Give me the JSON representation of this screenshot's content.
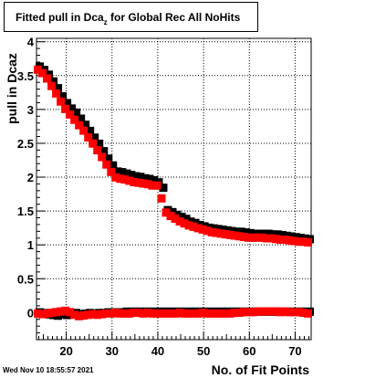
{
  "title": {
    "main": "Fitted pull in Dca",
    "sub": "z",
    "rest": " for Global Rec All NoHits"
  },
  "timestamp": "Wed Nov 10 18:55:57 2021",
  "colors": {
    "series_black": "#000000",
    "series_red": "#ff0000",
    "grid": "#000000"
  },
  "chart_data": {
    "type": "scatter",
    "title": "Fitted pull in Dcaz for Global Rec All NoHits",
    "xlabel": "No. of Fit Points",
    "ylabel": "pull in Dcaz",
    "xlim": [
      13.5,
      73.5
    ],
    "ylim": [
      -0.4,
      4.05
    ],
    "grid": true,
    "x_ticks": [
      20,
      30,
      40,
      50,
      60,
      70
    ],
    "y_ticks": [
      0,
      0.5,
      1,
      1.5,
      2,
      2.5,
      3,
      3.5,
      4
    ],
    "x_tick_labels": [
      "20",
      "30",
      "40",
      "50",
      "60",
      "70"
    ],
    "y_tick_labels": [
      "0",
      "0.5",
      "1",
      "1.5",
      "2",
      "2.5",
      "3",
      "3.5",
      "4"
    ],
    "x": [
      14,
      15,
      16,
      17,
      18,
      19,
      20,
      21,
      22,
      23,
      24,
      25,
      26,
      27,
      28,
      29,
      30,
      31,
      32,
      33,
      34,
      35,
      36,
      37,
      38,
      39,
      40,
      41,
      42,
      43,
      44,
      45,
      46,
      47,
      48,
      49,
      50,
      51,
      52,
      53,
      54,
      55,
      56,
      57,
      58,
      59,
      60,
      61,
      62,
      63,
      64,
      65,
      66,
      67,
      68,
      69,
      70,
      71,
      72,
      73
    ],
    "series": [
      {
        "color": "black",
        "values": [
          3.62,
          3.57,
          3.5,
          3.4,
          3.3,
          3.18,
          3.08,
          3.0,
          2.94,
          2.85,
          2.76,
          2.67,
          2.57,
          2.48,
          2.37,
          2.26,
          2.16,
          2.07,
          2.06,
          2.04,
          2.02,
          2.0,
          1.99,
          1.97,
          1.96,
          1.94,
          1.91,
          1.83,
          1.5,
          1.47,
          1.43,
          1.4,
          1.37,
          1.33,
          1.31,
          1.28,
          1.26,
          1.24,
          1.23,
          1.22,
          1.21,
          1.2,
          1.19,
          1.18,
          1.18,
          1.17,
          1.16,
          1.15,
          1.15,
          1.15,
          1.15,
          1.14,
          1.14,
          1.13,
          1.12,
          1.11,
          1.1,
          1.09,
          1.08,
          1.07
        ]
      },
      {
        "color": "red",
        "values": [
          3.6,
          3.55,
          3.47,
          3.36,
          3.25,
          3.13,
          3.02,
          2.94,
          2.86,
          2.78,
          2.7,
          2.6,
          2.51,
          2.41,
          2.31,
          2.2,
          2.09,
          2.01,
          1.99,
          1.98,
          1.96,
          1.94,
          1.93,
          1.92,
          1.91,
          1.89,
          1.89,
          1.7,
          1.49,
          1.44,
          1.4,
          1.36,
          1.33,
          1.3,
          1.28,
          1.26,
          1.24,
          1.22,
          1.2,
          1.19,
          1.18,
          1.17,
          1.16,
          1.15,
          1.14,
          1.13,
          1.12,
          1.12,
          1.12,
          1.12,
          1.11,
          1.11,
          1.1,
          1.09,
          1.09,
          1.08,
          1.07,
          1.06,
          1.06,
          1.05
        ]
      },
      {
        "color": "black",
        "values": [
          -0.01,
          -0.02,
          -0.04,
          -0.05,
          -0.06,
          -0.04,
          -0.05,
          -0.03,
          -0.02,
          -0.04,
          -0.03,
          -0.02,
          -0.03,
          -0.02,
          -0.02,
          -0.01,
          -0.01,
          -0.01,
          -0.01,
          0.0,
          0.0,
          0.0,
          0.0,
          0.0,
          0.0,
          0.0,
          0.0,
          0.0,
          0.0,
          0.0,
          0.0,
          0.0,
          0.0,
          0.0,
          0.0,
          0.0,
          0.0,
          0.0,
          0.0,
          0.0,
          0.0,
          0.0,
          0.0,
          0.0,
          0.0,
          0.0,
          0.0,
          0.0,
          0.0,
          0.0,
          0.0,
          0.0,
          0.0,
          0.0,
          0.0,
          0.0,
          0.0,
          0.0,
          0.0,
          0.0
        ]
      },
      {
        "color": "red",
        "values": [
          0.0,
          -0.01,
          0.0,
          0.01,
          0.02,
          0.03,
          0.04,
          0.02,
          -0.02,
          -0.04,
          -0.03,
          -0.02,
          -0.01,
          -0.02,
          -0.01,
          0.0,
          0.0,
          0.01,
          0.0,
          0.0,
          0.0,
          0.01,
          0.01,
          0.0,
          0.01,
          0.0,
          0.0,
          0.0,
          0.0,
          0.0,
          0.0,
          0.01,
          0.0,
          0.0,
          0.0,
          0.0,
          0.01,
          0.0,
          0.0,
          0.0,
          0.0,
          0.0,
          0.0,
          0.01,
          0.01,
          0.02,
          0.02,
          0.02,
          0.03,
          0.03,
          0.03,
          0.03,
          0.03,
          0.02,
          0.03,
          0.02,
          0.02,
          0.02,
          0.01,
          0.0
        ]
      }
    ]
  }
}
